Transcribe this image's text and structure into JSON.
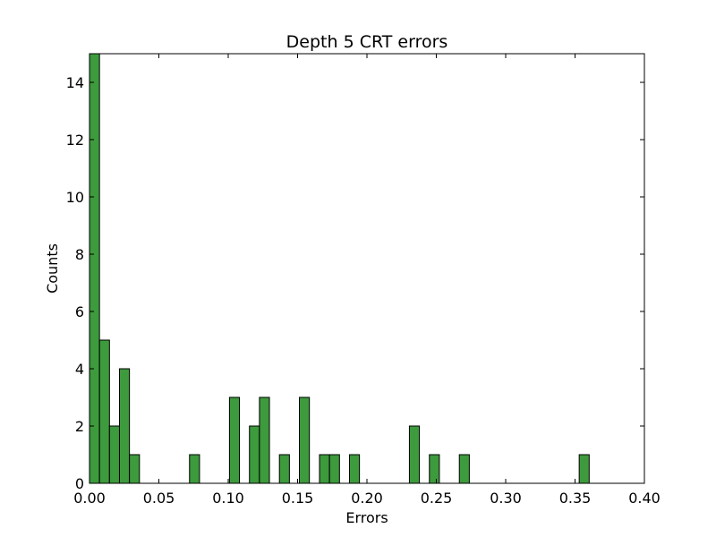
{
  "chart_data": {
    "type": "bar",
    "title": "Depth 5 CRT errors",
    "xlabel": "Errors",
    "ylabel": "Counts",
    "xlim": [
      0.0,
      0.4
    ],
    "ylim": [
      0,
      15
    ],
    "bin_width": 0.0072,
    "x_ticks": [
      "0.00",
      "0.05",
      "0.10",
      "0.15",
      "0.20",
      "0.25",
      "0.30",
      "0.35",
      "0.40"
    ],
    "y_ticks": [
      "0",
      "2",
      "4",
      "6",
      "8",
      "10",
      "12",
      "14"
    ],
    "grid": false,
    "bar_color": "#3d9a3d",
    "bar_edge_color": "#000000",
    "bars": [
      {
        "x": 0.0,
        "count": 15
      },
      {
        "x": 0.0072,
        "count": 5
      },
      {
        "x": 0.0144,
        "count": 2
      },
      {
        "x": 0.0216,
        "count": 4
      },
      {
        "x": 0.0288,
        "count": 1
      },
      {
        "x": 0.0721,
        "count": 1
      },
      {
        "x": 0.1009,
        "count": 3
      },
      {
        "x": 0.1153,
        "count": 2
      },
      {
        "x": 0.1225,
        "count": 3
      },
      {
        "x": 0.1369,
        "count": 1
      },
      {
        "x": 0.1513,
        "count": 3
      },
      {
        "x": 0.1658,
        "count": 1
      },
      {
        "x": 0.173,
        "count": 1
      },
      {
        "x": 0.1874,
        "count": 1
      },
      {
        "x": 0.2306,
        "count": 2
      },
      {
        "x": 0.245,
        "count": 1
      },
      {
        "x": 0.2666,
        "count": 1
      },
      {
        "x": 0.353,
        "count": 1
      }
    ]
  }
}
